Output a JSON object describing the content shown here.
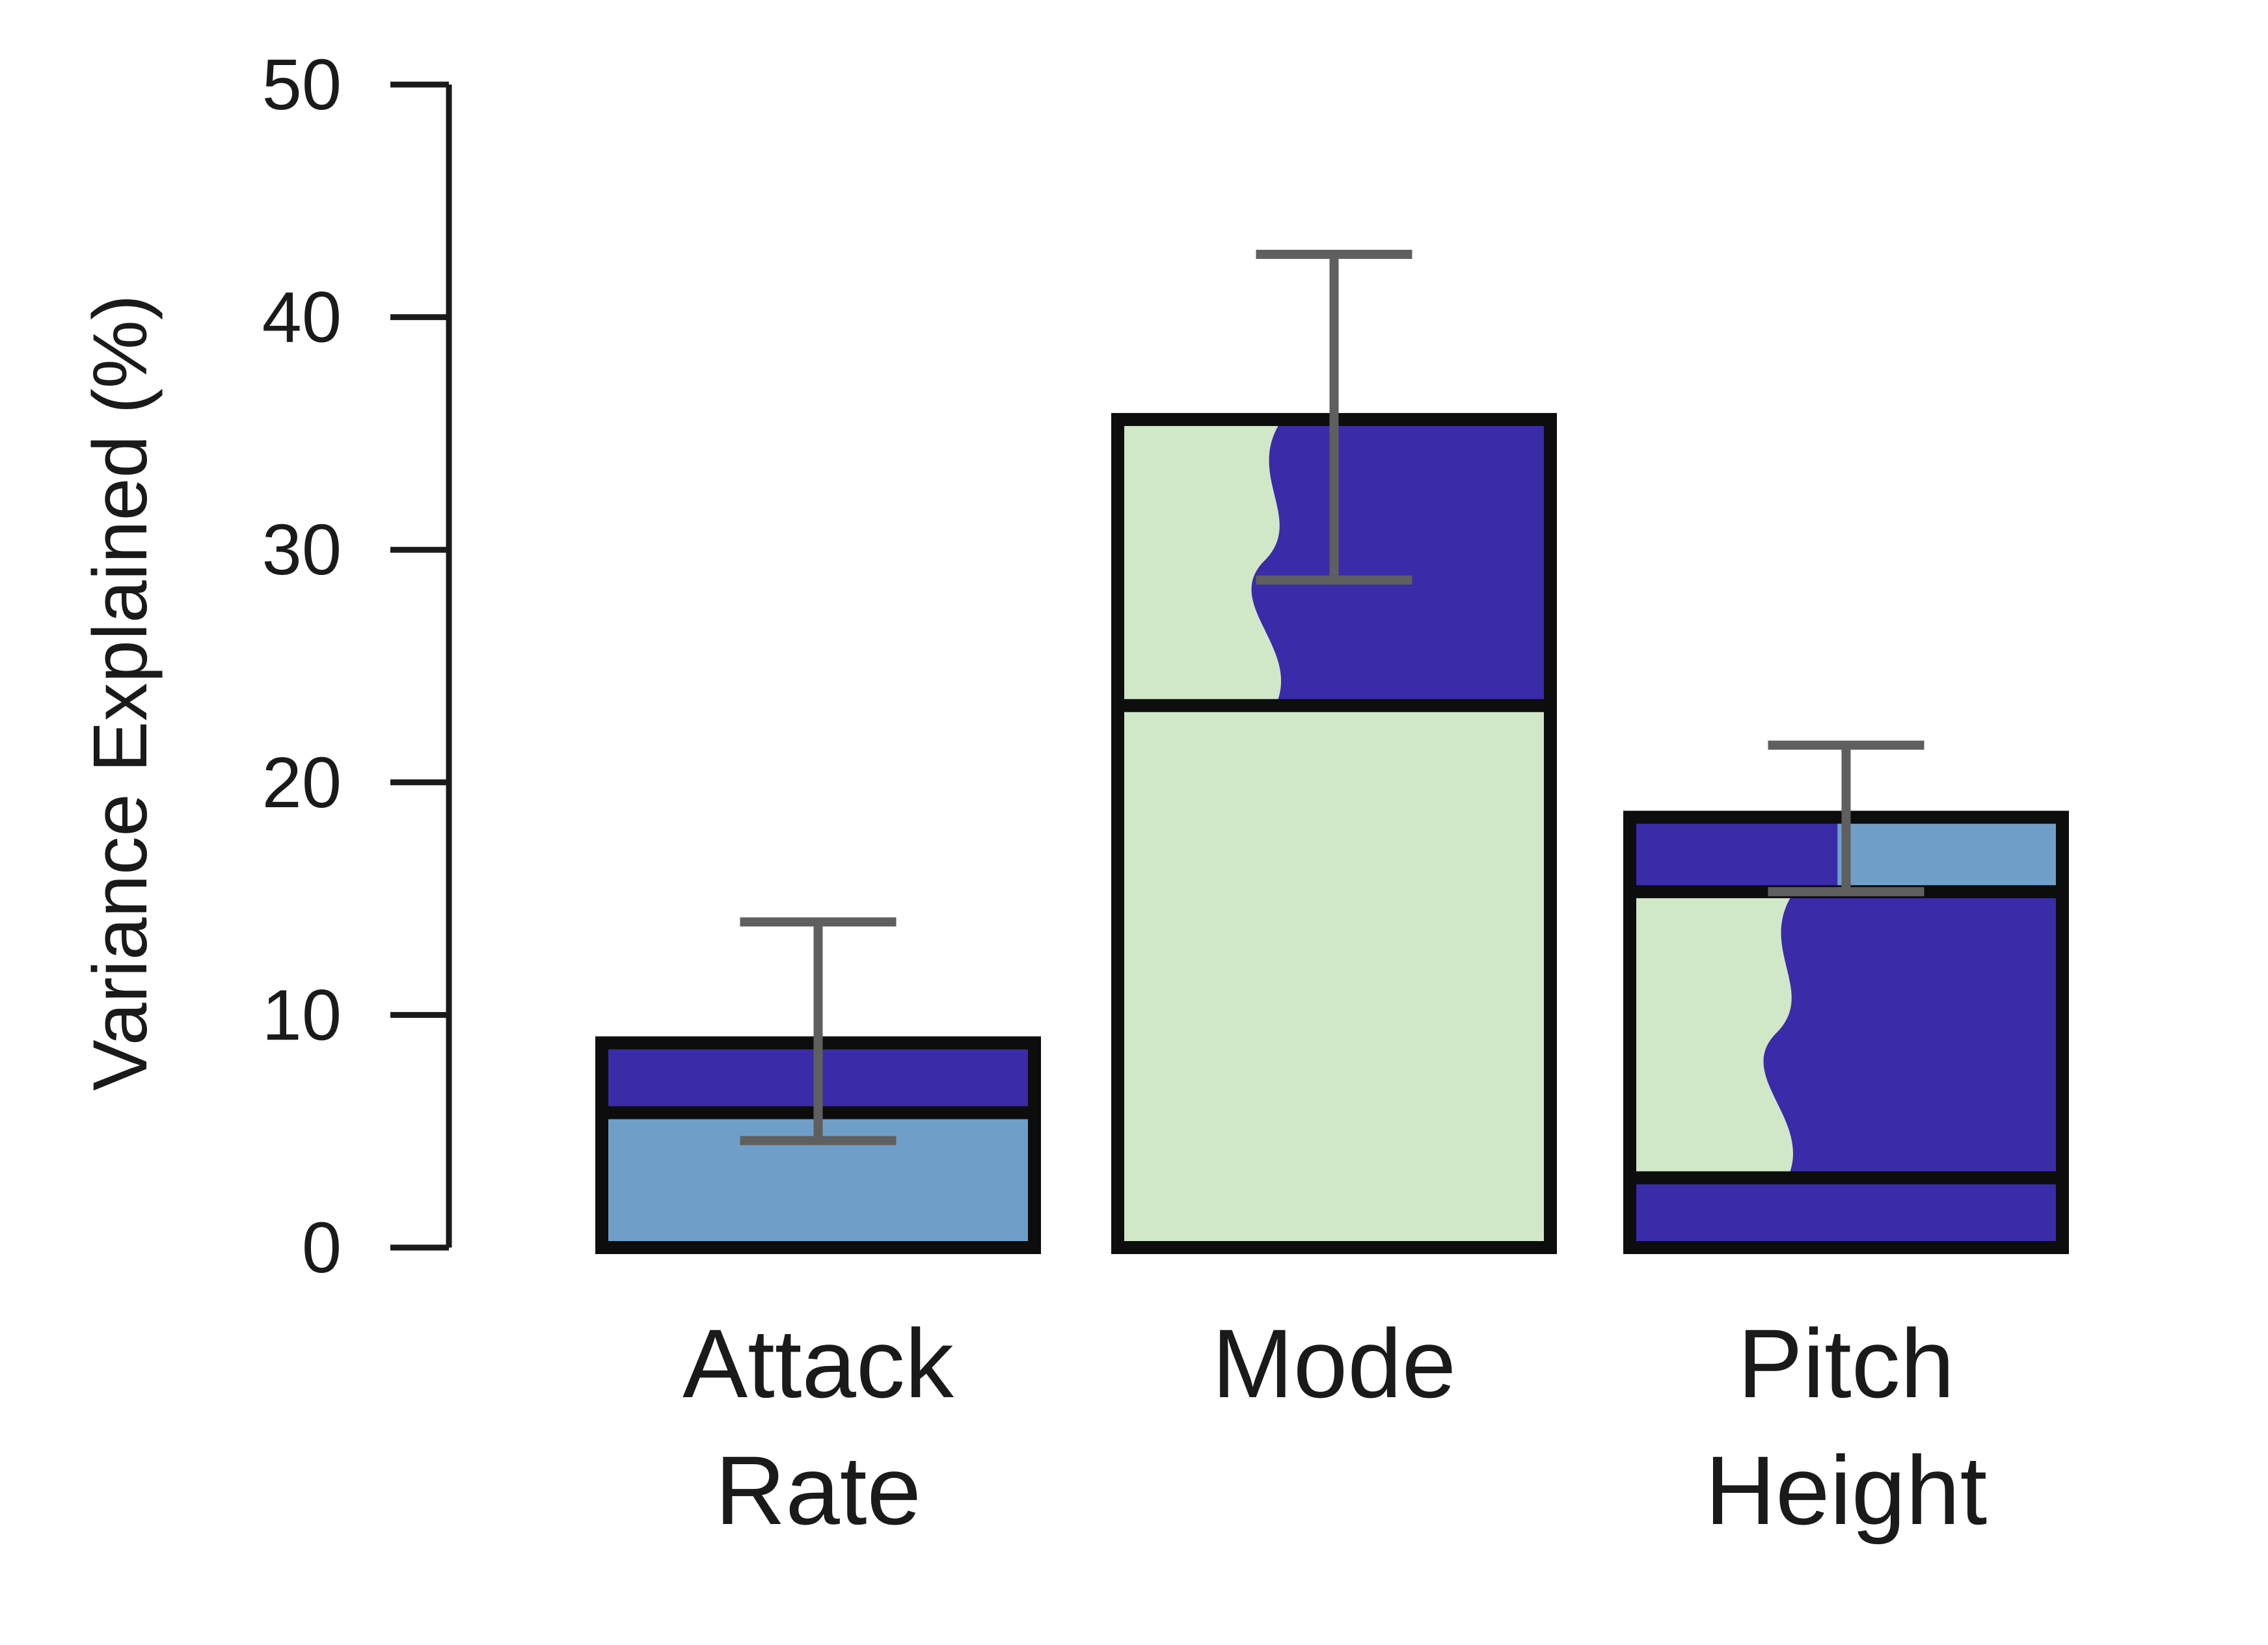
{
  "chart_data": {
    "type": "bar",
    "title": "",
    "xlabel": "",
    "ylabel": "Variance Explained (%)",
    "ylim": [
      0,
      50
    ],
    "yticks": [
      0,
      10,
      20,
      30,
      40,
      50
    ],
    "grid": false,
    "categories": [
      {
        "lines": [
          "Attack",
          "Rate"
        ]
      },
      {
        "lines": [
          "Mode"
        ]
      },
      {
        "lines": [
          "Pitch",
          "Height"
        ]
      }
    ],
    "bars": [
      {
        "segments": [
          {
            "from": 0,
            "to": 5.8,
            "color": "#6f9fc9"
          },
          {
            "from": 5.8,
            "to": 8.8,
            "color": "#3a2ba8"
          }
        ],
        "total": 8.8,
        "error": [
          4.6,
          14.0
        ]
      },
      {
        "segments": [
          {
            "from": 0,
            "to": 23.3,
            "color": "#d0e8c8"
          },
          {
            "from": 23.3,
            "to": 35.6,
            "color": "#3a2ba8",
            "left_color": "#d0e8c8"
          }
        ],
        "total": 35.6,
        "error": [
          28.7,
          42.7
        ]
      },
      {
        "segments": [
          {
            "from": 0,
            "to": 3.0,
            "color": "#3a2ba8"
          },
          {
            "from": 3.0,
            "to": 15.3,
            "color": "#3a2ba8",
            "left_color": "#d0e8c8"
          },
          {
            "from": 15.3,
            "to": 18.5,
            "color": "#3a2ba8",
            "right_color": "#6f9fc9"
          }
        ],
        "total": 18.5,
        "error": [
          15.3,
          21.6
        ]
      }
    ],
    "colors": {
      "axis": "#1a1a1a",
      "outline": "#0d0d0d",
      "errorbar": "#5f5f5f"
    }
  }
}
